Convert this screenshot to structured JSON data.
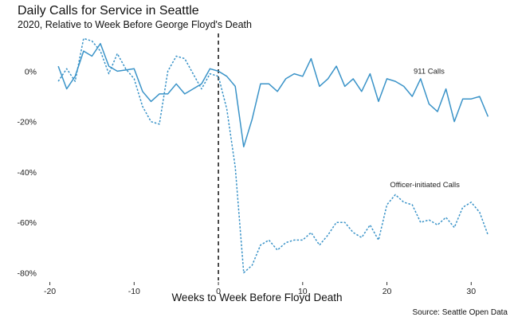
{
  "chart_data": {
    "type": "line",
    "title": "Daily Calls for Service in Seattle",
    "subtitle": "2020, Relative to Week Before George Floyd's Death",
    "xlabel": "Weeks to Week Before Floyd Death",
    "ylabel": "",
    "caption": "Source: Seattle Open Data",
    "xlim": [
      -21,
      33
    ],
    "ylim": [
      -83,
      15
    ],
    "x_ticks": [
      -20,
      -10,
      0,
      10,
      20,
      30
    ],
    "x_tick_labels": [
      "-20",
      "-10",
      "0",
      "10",
      "20",
      "30"
    ],
    "y_ticks": [
      0,
      -20,
      -40,
      -60,
      -80
    ],
    "y_tick_labels": [
      "0%",
      "-20%",
      "-40%",
      "-60%",
      "-80%"
    ],
    "reference_line_x": 0,
    "grid": false,
    "color": "#3a93c8",
    "series": [
      {
        "name": "911 Calls",
        "style": "solid",
        "x": [
          -19,
          -18,
          -17,
          -16,
          -15,
          -14,
          -13,
          -12,
          -11,
          -10,
          -9,
          -8,
          -7,
          -6,
          -5,
          -4,
          -3,
          -2,
          -1,
          0,
          1,
          2,
          3,
          4,
          5,
          6,
          7,
          8,
          9,
          10,
          11,
          12,
          13,
          14,
          15,
          16,
          17,
          18,
          19,
          20,
          21,
          22,
          23,
          24,
          25,
          26,
          27,
          28,
          29,
          30,
          31,
          32
        ],
        "values": [
          2,
          -7,
          -2,
          8,
          6,
          11,
          2,
          0,
          0.5,
          1,
          -8,
          -12,
          -9,
          -9,
          -5,
          -9,
          -7,
          -5,
          1,
          0,
          -2,
          -6,
          -30,
          -19,
          -5,
          -5,
          -8,
          -3,
          -1,
          -2,
          5,
          -6,
          -3,
          2,
          -6,
          -3,
          -8,
          -1,
          -12,
          -3,
          -4,
          -6,
          -10,
          -3,
          -13,
          -16,
          -7,
          -20,
          -11,
          -11,
          -10,
          -18
        ]
      },
      {
        "name": "Officer-initiated Calls",
        "style": "dotted",
        "x": [
          -19,
          -18,
          -17,
          -16,
          -15,
          -14,
          -13,
          -12,
          -11,
          -10,
          -9,
          -8,
          -7,
          -6,
          -5,
          -4,
          -3,
          -2,
          -1,
          0,
          1,
          2,
          3,
          4,
          5,
          6,
          7,
          8,
          9,
          10,
          11,
          12,
          13,
          14,
          15,
          16,
          17,
          18,
          19,
          20,
          21,
          22,
          23,
          24,
          25,
          26,
          27,
          28,
          29,
          30,
          31,
          32
        ],
        "values": [
          -4,
          1,
          -4,
          13,
          12,
          8,
          -1,
          7,
          1,
          -3,
          -14,
          -20,
          -21,
          0,
          6,
          5,
          -1,
          -7,
          -1,
          -2,
          -15,
          -38,
          -80,
          -77,
          -69,
          -67,
          -71,
          -68,
          -67,
          -67,
          -64,
          -69,
          -65,
          -60,
          -60,
          -64,
          -66,
          -61,
          -67,
          -53,
          -49,
          -52,
          -53,
          -60,
          -59,
          -61,
          -58,
          -62,
          -54,
          -52,
          -56,
          -65
        ]
      }
    ],
    "annotations": [
      {
        "text": "911 Calls",
        "x": 25,
        "y": 0
      },
      {
        "text": "Officer-initiated Calls",
        "x": 24.5,
        "y": -45
      }
    ]
  }
}
